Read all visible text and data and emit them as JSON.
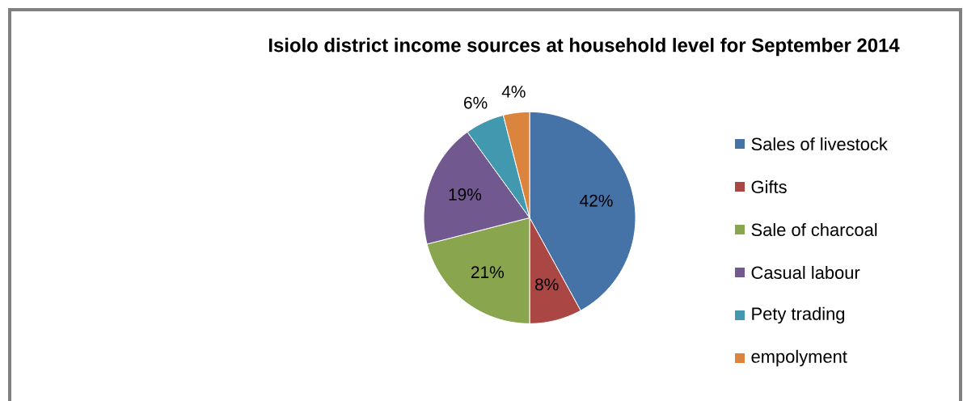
{
  "chart_data": {
    "type": "pie",
    "title": "Isiolo district income sources at household level for  September  2014",
    "categories": [
      "Sales of livestock",
      "Gifts",
      "Sale of charcoal",
      "Casual labour",
      "Pety trading",
      "empolyment"
    ],
    "values": [
      42,
      8,
      21,
      19,
      6,
      4
    ],
    "colors": [
      "#4572a7",
      "#aa4643",
      "#89a54e",
      "#71588f",
      "#4198af",
      "#db843d"
    ],
    "value_labels": [
      "42%",
      "8%",
      "21%",
      "19%",
      "6%",
      "4%"
    ],
    "legend": "right"
  }
}
